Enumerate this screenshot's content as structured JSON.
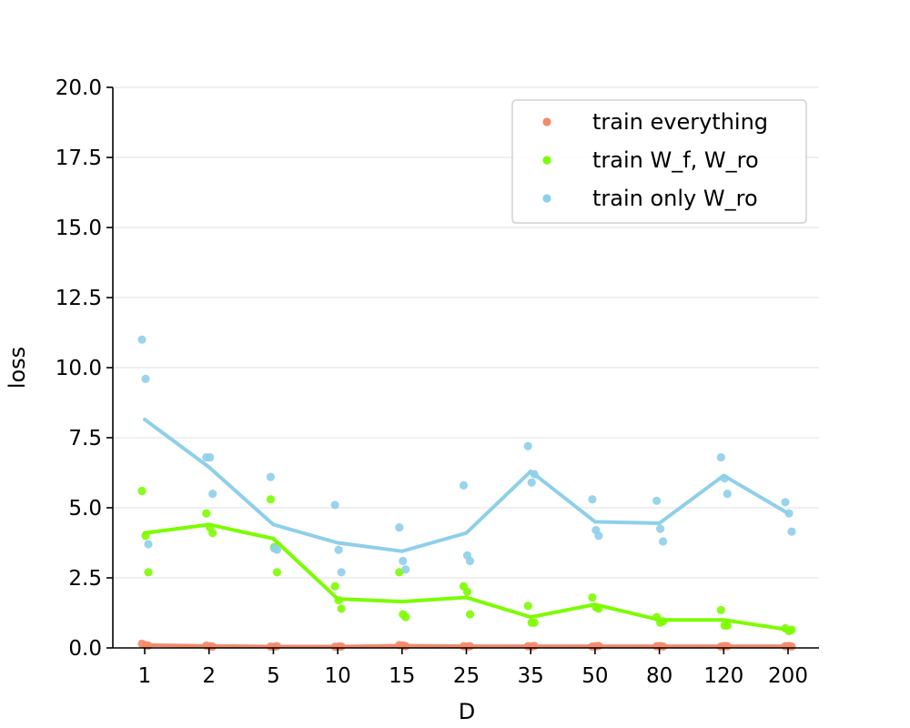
{
  "chart_data": {
    "type": "line",
    "xlabel": "D",
    "ylabel": "loss",
    "categories": [
      "1",
      "2",
      "5",
      "10",
      "15",
      "25",
      "35",
      "50",
      "80",
      "120",
      "200"
    ],
    "ylim": [
      0,
      20
    ],
    "yticks": [
      "0.0",
      "2.5",
      "5.0",
      "7.5",
      "10.0",
      "12.5",
      "15.0",
      "17.5",
      "20.0"
    ],
    "grid": "horizontal",
    "legend": "top-right",
    "series": [
      {
        "name": "train everything",
        "color": "#f4896b",
        "mean": [
          0.1,
          0.07,
          0.05,
          0.05,
          0.08,
          0.06,
          0.06,
          0.06,
          0.06,
          0.06,
          0.06
        ],
        "points": [
          [
            0.15,
            0.1,
            0.08
          ],
          [
            0.08,
            0.06,
            0.05
          ],
          [
            0.05,
            0.04,
            0.06
          ],
          [
            0.04,
            0.05,
            0.05
          ],
          [
            0.1,
            0.09,
            0.06
          ],
          [
            0.06,
            0.05,
            0.06
          ],
          [
            0.06,
            0.05,
            0.07
          ],
          [
            0.05,
            0.06,
            0.07
          ],
          [
            0.06,
            0.07,
            0.05
          ],
          [
            0.05,
            0.07,
            0.06
          ],
          [
            0.06,
            0.07,
            0.05
          ]
        ]
      },
      {
        "name": "train W_f, W_ro",
        "color": "#7cfc00",
        "mean": [
          4.1,
          4.4,
          3.9,
          1.75,
          1.65,
          1.8,
          1.1,
          1.55,
          1.0,
          1.0,
          0.65
        ],
        "points": [
          [
            5.6,
            4.0,
            2.7
          ],
          [
            4.8,
            4.3,
            4.1
          ],
          [
            5.3,
            3.6,
            2.7
          ],
          [
            2.2,
            1.7,
            1.4
          ],
          [
            2.7,
            1.2,
            1.1
          ],
          [
            2.2,
            2.0,
            1.2
          ],
          [
            1.5,
            0.9,
            0.9
          ],
          [
            1.8,
            1.45,
            1.4
          ],
          [
            1.1,
            0.9,
            0.95
          ],
          [
            1.35,
            0.8,
            0.8
          ],
          [
            0.7,
            0.6,
            0.65
          ]
        ]
      },
      {
        "name": "train only W_ro",
        "color": "#8ecfea",
        "mean": [
          8.15,
          6.45,
          4.4,
          3.75,
          3.45,
          4.1,
          6.3,
          4.5,
          4.45,
          6.15,
          4.8
        ],
        "points": [
          [
            11.0,
            9.6,
            3.7
          ],
          [
            6.8,
            6.8,
            5.5
          ],
          [
            6.1,
            3.55,
            3.5
          ],
          [
            5.1,
            3.5,
            2.7
          ],
          [
            4.3,
            3.1,
            2.8
          ],
          [
            5.8,
            3.3,
            3.1
          ],
          [
            7.2,
            5.9,
            6.2
          ],
          [
            5.3,
            4.2,
            4.0
          ],
          [
            5.25,
            4.25,
            3.8
          ],
          [
            6.8,
            6.05,
            5.5
          ],
          [
            5.2,
            4.8,
            4.15
          ]
        ]
      }
    ]
  }
}
